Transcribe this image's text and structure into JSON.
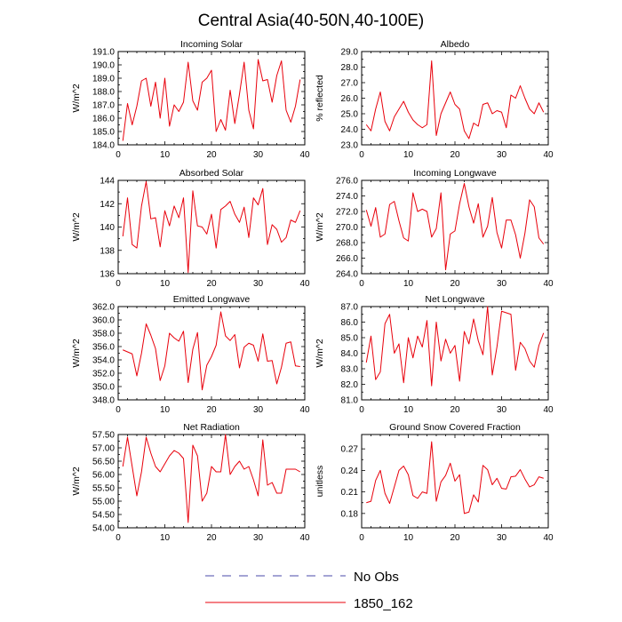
{
  "title": "Central Asia(40-50N,40-100E)",
  "legend": {
    "items": [
      {
        "label": "No Obs",
        "color": "#4a4aa8",
        "dash": true
      },
      {
        "label": "1850_162",
        "color": "#e8000b",
        "dash": false
      }
    ]
  },
  "chart_data": [
    {
      "type": "line",
      "title": "Incoming Solar",
      "ylabel": "W/m^2",
      "xlim": [
        0,
        40
      ],
      "xticks": [
        0,
        10,
        20,
        30,
        40
      ],
      "ylim": [
        184,
        191
      ],
      "yticks": [
        "184.0",
        "185.0",
        "186.0",
        "187.0",
        "188.0",
        "189.0",
        "190.0",
        "191.0"
      ],
      "x": [
        1,
        2,
        3,
        4,
        5,
        6,
        7,
        8,
        9,
        10,
        11,
        12,
        13,
        14,
        15,
        16,
        17,
        18,
        19,
        20,
        21,
        22,
        23,
        24,
        25,
        26,
        27,
        28,
        29,
        30,
        31,
        32,
        33,
        34,
        35,
        36,
        37,
        38,
        39
      ],
      "series": [
        {
          "name": "1850_162",
          "values": [
            184.3,
            187.1,
            185.5,
            186.9,
            188.8,
            189.0,
            186.9,
            188.7,
            186.0,
            189.0,
            185.4,
            187.0,
            186.5,
            187.2,
            190.2,
            187.3,
            186.6,
            188.7,
            189.0,
            189.6,
            185.0,
            185.9,
            185.1,
            188.1,
            185.6,
            187.8,
            190.2,
            186.6,
            185.2,
            190.4,
            188.8,
            188.9,
            187.2,
            189.2,
            190.3,
            186.6,
            185.7,
            186.9,
            188.9
          ]
        }
      ]
    },
    {
      "type": "line",
      "title": "Albedo",
      "ylabel": "% reflected",
      "xlim": [
        0,
        40
      ],
      "xticks": [
        0,
        10,
        20,
        30,
        40
      ],
      "ylim": [
        23,
        29
      ],
      "yticks": [
        "23.0",
        "24.0",
        "25.0",
        "26.0",
        "27.0",
        "28.0",
        "29.0"
      ],
      "x": [
        1,
        2,
        3,
        4,
        5,
        6,
        7,
        8,
        9,
        10,
        11,
        12,
        13,
        14,
        15,
        16,
        17,
        18,
        19,
        20,
        21,
        22,
        23,
        24,
        25,
        26,
        27,
        28,
        29,
        30,
        31,
        32,
        33,
        34,
        35,
        36,
        37,
        38,
        39
      ],
      "series": [
        {
          "name": "1850_162",
          "values": [
            24.3,
            23.9,
            25.3,
            26.4,
            24.5,
            23.9,
            24.8,
            25.3,
            25.8,
            25.1,
            24.6,
            24.3,
            24.1,
            24.3,
            28.4,
            23.6,
            25.0,
            25.7,
            26.4,
            25.6,
            25.3,
            23.9,
            23.4,
            24.4,
            24.2,
            25.6,
            25.7,
            25.0,
            25.2,
            25.1,
            24.1,
            26.2,
            26.0,
            26.8,
            26.0,
            25.3,
            25.0,
            25.7,
            25.1
          ]
        }
      ]
    },
    {
      "type": "line",
      "title": "Absorbed Solar",
      "ylabel": "W/m^2",
      "xlim": [
        0,
        40
      ],
      "xticks": [
        0,
        10,
        20,
        30,
        40
      ],
      "ylim": [
        136,
        144
      ],
      "yticks": [
        "136",
        "138",
        "140",
        "142",
        "144"
      ],
      "x": [
        1,
        2,
        3,
        4,
        5,
        6,
        7,
        8,
        9,
        10,
        11,
        12,
        13,
        14,
        15,
        16,
        17,
        18,
        19,
        20,
        21,
        22,
        23,
        24,
        25,
        26,
        27,
        28,
        29,
        30,
        31,
        32,
        33,
        34,
        35,
        36,
        37,
        38,
        39
      ],
      "series": [
        {
          "name": "1850_162",
          "values": [
            139.2,
            142.5,
            138.5,
            138.2,
            141.8,
            143.9,
            140.7,
            140.8,
            138.3,
            141.4,
            140.1,
            141.8,
            140.8,
            142.5,
            136.1,
            143.1,
            140.1,
            140.0,
            139.4,
            141.1,
            138.2,
            141.5,
            141.8,
            142.2,
            141.1,
            140.4,
            141.7,
            139.1,
            142.5,
            141.9,
            143.3,
            138.5,
            140.2,
            139.8,
            138.7,
            139.1,
            140.6,
            140.4,
            141.4
          ]
        }
      ]
    },
    {
      "type": "line",
      "title": "Incoming Longwave",
      "ylabel": "W/m^2",
      "xlim": [
        0,
        40
      ],
      "xticks": [
        0,
        10,
        20,
        30,
        40
      ],
      "ylim": [
        264,
        276
      ],
      "yticks": [
        "264.0",
        "266.0",
        "268.0",
        "270.0",
        "272.0",
        "274.0",
        "276.0"
      ],
      "x": [
        1,
        2,
        3,
        4,
        5,
        6,
        7,
        8,
        9,
        10,
        11,
        12,
        13,
        14,
        15,
        16,
        17,
        18,
        19,
        20,
        21,
        22,
        23,
        24,
        25,
        26,
        27,
        28,
        29,
        30,
        31,
        32,
        33,
        34,
        35,
        36,
        37,
        38,
        39
      ],
      "series": [
        {
          "name": "1850_162",
          "values": [
            272.2,
            270.1,
            272.5,
            268.7,
            269.1,
            272.9,
            273.3,
            270.8,
            268.6,
            268.2,
            274.4,
            272.0,
            272.3,
            272.0,
            268.7,
            269.8,
            274.4,
            264.5,
            269.1,
            269.5,
            273.0,
            275.6,
            272.6,
            270.5,
            273.0,
            268.7,
            270.1,
            273.8,
            269.3,
            267.3,
            270.9,
            270.9,
            269.0,
            266.0,
            269.2,
            273.5,
            272.6,
            268.6,
            267.8
          ]
        }
      ]
    },
    {
      "type": "line",
      "title": "Emitted Longwave",
      "ylabel": "W/m^2",
      "xlim": [
        0,
        40
      ],
      "xticks": [
        0,
        10,
        20,
        30,
        40
      ],
      "ylim": [
        348,
        362
      ],
      "yticks": [
        "348.0",
        "350.0",
        "352.0",
        "354.0",
        "356.0",
        "358.0",
        "360.0",
        "362.0"
      ],
      "x": [
        1,
        2,
        3,
        4,
        5,
        6,
        7,
        8,
        9,
        10,
        11,
        12,
        13,
        14,
        15,
        16,
        17,
        18,
        19,
        20,
        21,
        22,
        23,
        24,
        25,
        26,
        27,
        28,
        29,
        30,
        31,
        32,
        33,
        34,
        35,
        36,
        37,
        38,
        39
      ],
      "series": [
        {
          "name": "1850_162",
          "values": [
            355.5,
            355.2,
            354.9,
            351.6,
            355.0,
            359.4,
            357.7,
            355.7,
            350.9,
            353.1,
            358.0,
            357.3,
            356.8,
            358.3,
            350.6,
            355.6,
            358.1,
            349.5,
            353.2,
            354.5,
            356.2,
            361.2,
            357.6,
            356.9,
            357.8,
            352.8,
            355.9,
            356.5,
            356.2,
            353.8,
            357.9,
            353.8,
            353.9,
            350.4,
            352.9,
            356.5,
            356.7,
            353.1,
            353.0
          ]
        }
      ]
    },
    {
      "type": "line",
      "title": "Net Longwave",
      "ylabel": "W/m^2",
      "xlim": [
        0,
        40
      ],
      "xticks": [
        0,
        10,
        20,
        30,
        40
      ],
      "ylim": [
        81,
        87
      ],
      "yticks": [
        "81.0",
        "82.0",
        "83.0",
        "84.0",
        "85.0",
        "86.0",
        "87.0"
      ],
      "x": [
        1,
        2,
        3,
        4,
        5,
        6,
        7,
        8,
        9,
        10,
        11,
        12,
        13,
        14,
        15,
        16,
        17,
        18,
        19,
        20,
        21,
        22,
        23,
        24,
        25,
        26,
        27,
        28,
        29,
        30,
        31,
        32,
        33,
        34,
        35,
        36,
        37,
        38,
        39
      ],
      "series": [
        {
          "name": "1850_162",
          "values": [
            83.4,
            85.1,
            82.3,
            82.8,
            85.9,
            86.5,
            84.0,
            84.6,
            82.1,
            85.0,
            83.7,
            85.1,
            84.4,
            86.1,
            81.9,
            86.0,
            83.5,
            84.9,
            84.0,
            84.5,
            82.2,
            85.4,
            84.6,
            86.2,
            84.8,
            83.9,
            87.0,
            82.6,
            84.4,
            86.7,
            86.6,
            86.5,
            82.9,
            84.7,
            84.3,
            83.5,
            83.1,
            84.5,
            85.3
          ]
        }
      ]
    },
    {
      "type": "line",
      "title": "Net Radiation",
      "ylabel": "W/m^2",
      "xlim": [
        0,
        40
      ],
      "xticks": [
        0,
        10,
        20,
        30,
        40
      ],
      "ylim": [
        54,
        57.5
      ],
      "yticks": [
        "54.00",
        "54.50",
        "55.00",
        "55.50",
        "56.00",
        "56.50",
        "57.00",
        "57.50"
      ],
      "x": [
        1,
        2,
        3,
        4,
        5,
        6,
        7,
        8,
        9,
        10,
        11,
        12,
        13,
        14,
        15,
        16,
        17,
        18,
        19,
        20,
        21,
        22,
        23,
        24,
        25,
        26,
        27,
        28,
        29,
        30,
        31,
        32,
        33,
        34,
        35,
        36,
        37,
        38,
        39
      ],
      "series": [
        {
          "name": "1850_162",
          "values": [
            56.3,
            57.4,
            56.3,
            55.2,
            56.1,
            57.4,
            56.8,
            56.3,
            56.1,
            56.4,
            56.7,
            56.9,
            56.8,
            56.6,
            54.2,
            57.1,
            56.7,
            55.0,
            55.3,
            56.3,
            56.1,
            56.1,
            57.5,
            56.0,
            56.3,
            56.5,
            56.2,
            56.3,
            55.8,
            55.2,
            57.3,
            55.6,
            55.7,
            55.3,
            55.3,
            56.2,
            56.2,
            56.2,
            56.1
          ]
        }
      ]
    },
    {
      "type": "line",
      "title": "Ground Snow Covered Fraction",
      "ylabel": "unitless",
      "xlim": [
        0,
        40
      ],
      "xticks": [
        0,
        10,
        20,
        30,
        40
      ],
      "ylim": [
        0.16,
        0.29
      ],
      "yticks": [
        "0.18",
        "0.21",
        "0.24",
        "0.27"
      ],
      "ytickvals": [
        0.18,
        0.21,
        0.24,
        0.27
      ],
      "x": [
        1,
        2,
        3,
        4,
        5,
        6,
        7,
        8,
        9,
        10,
        11,
        12,
        13,
        14,
        15,
        16,
        17,
        18,
        19,
        20,
        21,
        22,
        23,
        24,
        25,
        26,
        27,
        28,
        29,
        30,
        31,
        32,
        33,
        34,
        35,
        36,
        37,
        38,
        39
      ],
      "series": [
        {
          "name": "1850_162",
          "values": [
            0.195,
            0.197,
            0.226,
            0.24,
            0.208,
            0.194,
            0.217,
            0.24,
            0.246,
            0.234,
            0.205,
            0.201,
            0.21,
            0.208,
            0.28,
            0.197,
            0.224,
            0.233,
            0.25,
            0.225,
            0.234,
            0.18,
            0.182,
            0.206,
            0.196,
            0.247,
            0.241,
            0.22,
            0.229,
            0.215,
            0.214,
            0.231,
            0.232,
            0.241,
            0.228,
            0.217,
            0.22,
            0.231,
            0.229
          ]
        }
      ]
    }
  ]
}
